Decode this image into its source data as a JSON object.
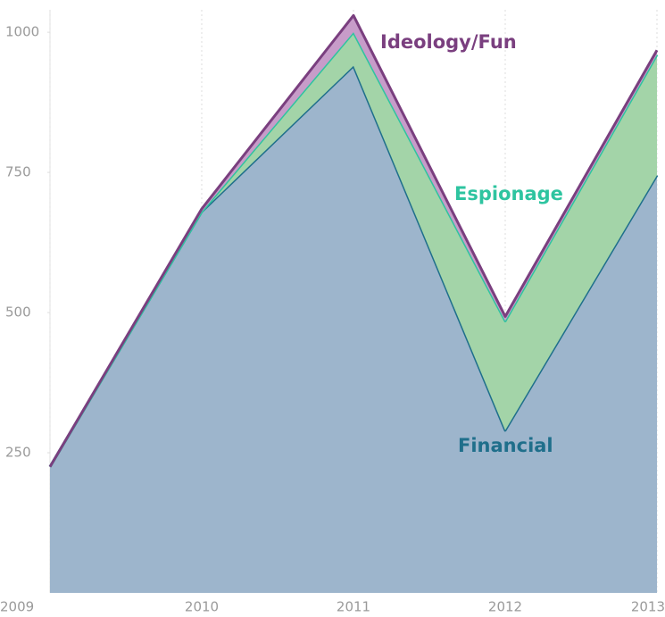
{
  "chart_data": {
    "type": "stacked_area",
    "x": [
      2009,
      2010,
      2011,
      2012,
      2013
    ],
    "xlim": [
      2009,
      2013
    ],
    "xticks": [
      2009,
      2010,
      2011,
      2012,
      2013
    ],
    "ylim": [
      0,
      1040
    ],
    "yticks": [
      250,
      500,
      750,
      1000
    ],
    "grid": true,
    "series": [
      {
        "name": "Financial",
        "color": "#1f6f8b",
        "fill": "#9db5cc",
        "values": [
          225,
          680,
          940,
          290,
          745
        ]
      },
      {
        "name": "Espionage",
        "color": "#2ec4a0",
        "fill": "#a3d4a8",
        "values": [
          0,
          0,
          60,
          195,
          215
        ]
      },
      {
        "name": "Ideology/Fun",
        "color": "#7a3f7f",
        "fill": "#c79cc9",
        "values": [
          0,
          5,
          30,
          8,
          8
        ]
      }
    ]
  }
}
